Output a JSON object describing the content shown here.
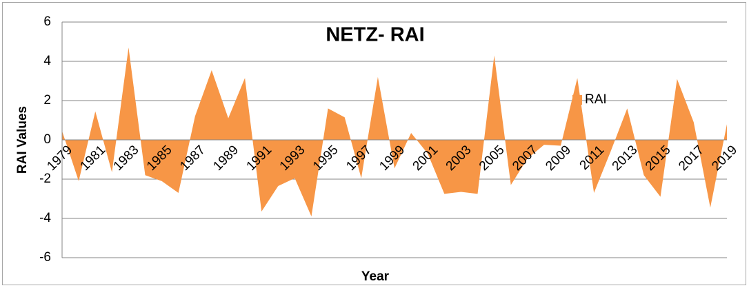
{
  "chart_data": {
    "type": "area",
    "title": "NETZ- RAI",
    "x_label": "Year",
    "y_label": "RAI Values",
    "categories": [
      "1979",
      null,
      "1981",
      null,
      "1983",
      null,
      "1985",
      null,
      "1987",
      null,
      "1989",
      null,
      "1991",
      null,
      "1993",
      null,
      "1995",
      null,
      "1997",
      null,
      "1999",
      null,
      "2001",
      null,
      "2003",
      null,
      "2005",
      null,
      "2007",
      null,
      "2009",
      null,
      "2011",
      null,
      "2013",
      null,
      "2015",
      null,
      "2017",
      null,
      "2019"
    ],
    "series": [
      {
        "name": "RAI",
        "color": "#f79646",
        "values": [
          0.45,
          -2.1,
          1.45,
          -1.65,
          4.7,
          -1.8,
          -2.1,
          -2.7,
          1.2,
          3.55,
          1.1,
          3.15,
          -3.65,
          -2.35,
          -1.95,
          -3.9,
          1.6,
          1.15,
          -1.95,
          3.2,
          -1.45,
          0.35,
          -0.7,
          -2.75,
          -2.65,
          -2.75,
          4.3,
          -2.3,
          -0.95,
          -0.25,
          -0.3,
          3.15,
          -2.7,
          -0.6,
          1.6,
          -1.8,
          -2.9,
          3.1,
          0.9,
          -3.45,
          0.8
        ]
      }
    ],
    "ylim": [
      -6,
      6
    ],
    "yticks": [
      -6,
      -4,
      -2,
      0,
      2,
      4,
      6
    ],
    "grid": true,
    "legend": "upper right"
  }
}
